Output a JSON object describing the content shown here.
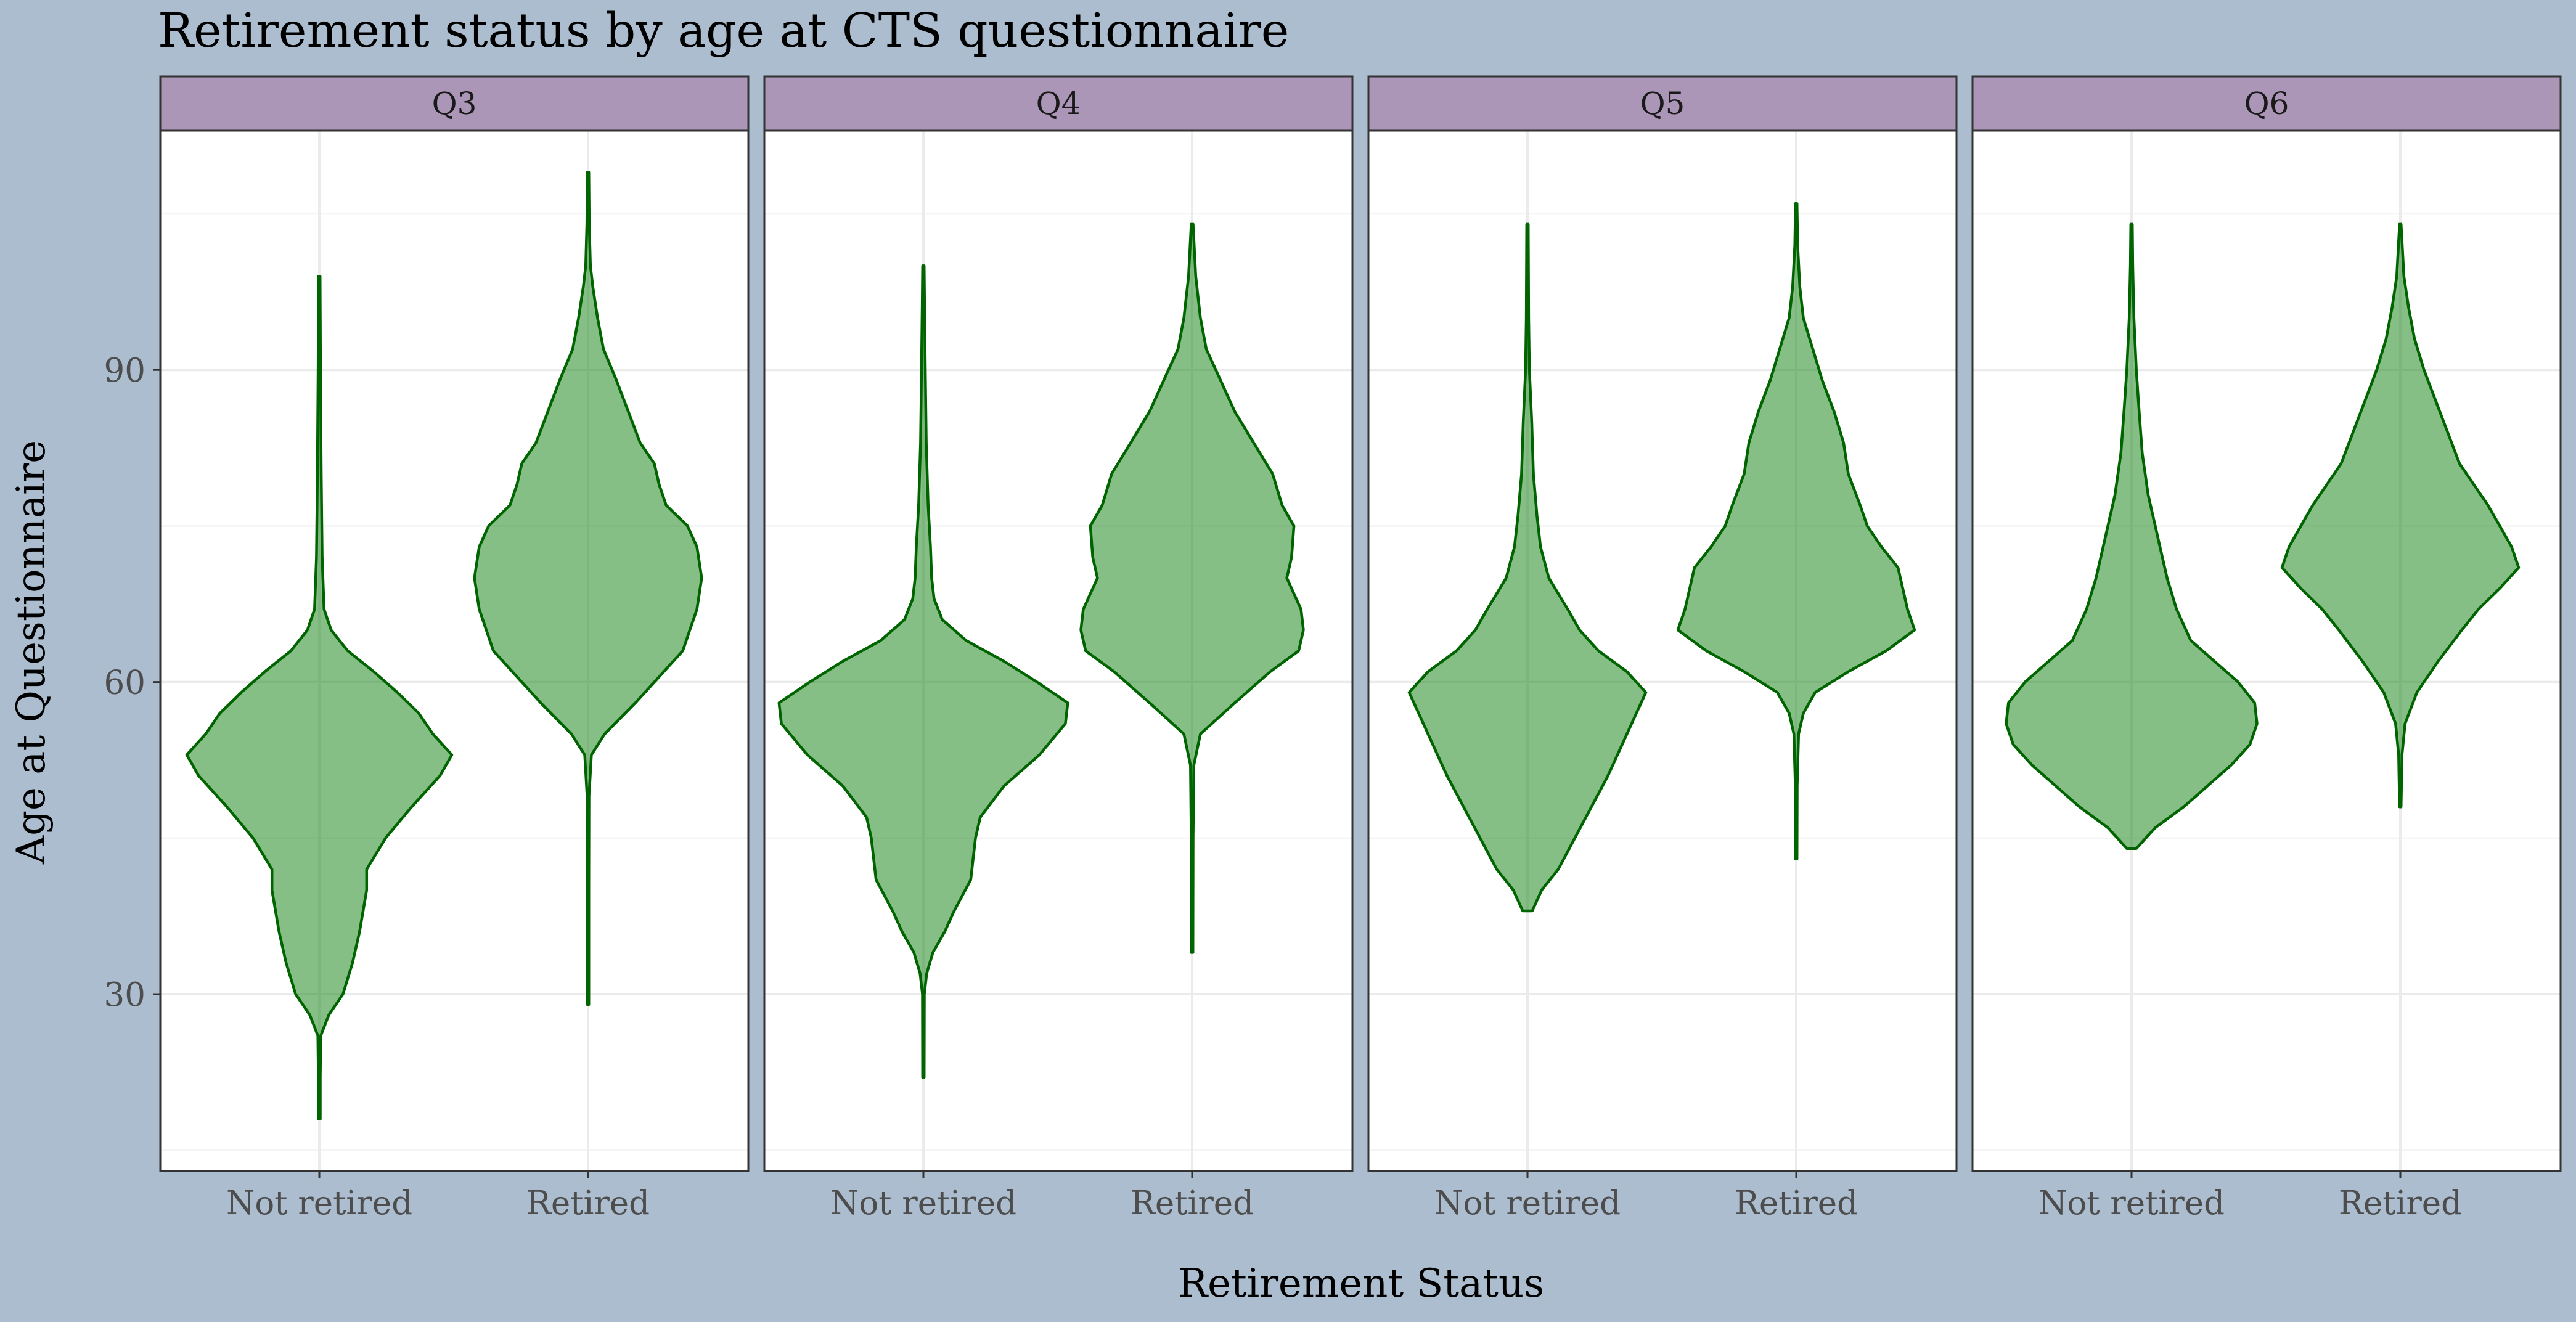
{
  "chart_data": {
    "type": "violin",
    "title": "Retirement status by age at CTS questionnaire",
    "xlabel": "Retirement Status",
    "ylabel": "Age at Questionnaire",
    "ylim": [
      13,
      113
    ],
    "yticks": [
      30,
      60,
      90
    ],
    "categories": [
      "Not retired",
      "Retired"
    ],
    "grid": true,
    "legend": "none",
    "colors": {
      "fill": "#228b22",
      "outline": "#006400",
      "strip": "#ab96b7",
      "background": "#abbdce"
    },
    "facets": [
      {
        "label": "Q3",
        "groups": [
          {
            "category": "Not retired",
            "min": 18,
            "max": 99,
            "profile": [
              [
                18,
                0.004
              ],
              [
                22,
                0.004
              ],
              [
                26,
                0.006
              ],
              [
                28,
                0.04
              ],
              [
                30,
                0.1
              ],
              [
                33,
                0.14
              ],
              [
                36,
                0.17
              ],
              [
                40,
                0.2
              ],
              [
                42,
                0.2
              ],
              [
                45,
                0.28
              ],
              [
                48,
                0.39
              ],
              [
                51,
                0.51
              ],
              [
                53,
                0.56
              ],
              [
                55,
                0.48
              ],
              [
                57,
                0.42
              ],
              [
                59,
                0.33
              ],
              [
                61,
                0.23
              ],
              [
                63,
                0.12
              ],
              [
                65,
                0.05
              ],
              [
                67,
                0.02
              ],
              [
                72,
                0.012
              ],
              [
                80,
                0.008
              ],
              [
                90,
                0.005
              ],
              [
                99,
                0.003
              ]
            ]
          },
          {
            "category": "Retired",
            "min": 29,
            "max": 109,
            "profile": [
              [
                29,
                0.003
              ],
              [
                40,
                0.003
              ],
              [
                49,
                0.004
              ],
              [
                53,
                0.014
              ],
              [
                55,
                0.07
              ],
              [
                58,
                0.2
              ],
              [
                61,
                0.32
              ],
              [
                63,
                0.4
              ],
              [
                65,
                0.43
              ],
              [
                67,
                0.46
              ],
              [
                70,
                0.48
              ],
              [
                73,
                0.46
              ],
              [
                75,
                0.42
              ],
              [
                77,
                0.33
              ],
              [
                79,
                0.3
              ],
              [
                81,
                0.28
              ],
              [
                83,
                0.22
              ],
              [
                86,
                0.17
              ],
              [
                89,
                0.12
              ],
              [
                92,
                0.065
              ],
              [
                95,
                0.04
              ],
              [
                98,
                0.02
              ],
              [
                100,
                0.01
              ],
              [
                104,
                0.005
              ],
              [
                109,
                0.003
              ]
            ]
          }
        ]
      },
      {
        "label": "Q4",
        "groups": [
          {
            "category": "Not retired",
            "min": 22,
            "max": 100,
            "profile": [
              [
                22,
                0.003
              ],
              [
                30,
                0.004
              ],
              [
                32,
                0.014
              ],
              [
                34,
                0.04
              ],
              [
                36,
                0.09
              ],
              [
                38,
                0.13
              ],
              [
                41,
                0.2
              ],
              [
                45,
                0.22
              ],
              [
                47,
                0.24
              ],
              [
                50,
                0.34
              ],
              [
                53,
                0.49
              ],
              [
                56,
                0.6
              ],
              [
                58,
                0.61
              ],
              [
                60,
                0.48
              ],
              [
                62,
                0.34
              ],
              [
                64,
                0.18
              ],
              [
                66,
                0.08
              ],
              [
                68,
                0.045
              ],
              [
                70,
                0.035
              ],
              [
                73,
                0.03
              ],
              [
                77,
                0.02
              ],
              [
                83,
                0.012
              ],
              [
                90,
                0.008
              ],
              [
                96,
                0.005
              ],
              [
                100,
                0.003
              ]
            ]
          },
          {
            "category": "Retired",
            "min": 34,
            "max": 104,
            "profile": [
              [
                34,
                0.003
              ],
              [
                45,
                0.004
              ],
              [
                52,
                0.007
              ],
              [
                55,
                0.035
              ],
              [
                58,
                0.18
              ],
              [
                61,
                0.33
              ],
              [
                63,
                0.45
              ],
              [
                65,
                0.47
              ],
              [
                67,
                0.46
              ],
              [
                70,
                0.4
              ],
              [
                72,
                0.42
              ],
              [
                75,
                0.43
              ],
              [
                77,
                0.38
              ],
              [
                80,
                0.34
              ],
              [
                83,
                0.26
              ],
              [
                86,
                0.18
              ],
              [
                89,
                0.12
              ],
              [
                92,
                0.06
              ],
              [
                95,
                0.035
              ],
              [
                99,
                0.015
              ],
              [
                104,
                0.004
              ]
            ]
          }
        ]
      },
      {
        "label": "Q5",
        "groups": [
          {
            "category": "Not retired",
            "min": 38,
            "max": 104,
            "profile": [
              [
                38,
                0.02
              ],
              [
                40,
                0.06
              ],
              [
                42,
                0.13
              ],
              [
                45,
                0.2
              ],
              [
                48,
                0.27
              ],
              [
                51,
                0.34
              ],
              [
                54,
                0.4
              ],
              [
                57,
                0.46
              ],
              [
                59,
                0.5
              ],
              [
                61,
                0.42
              ],
              [
                63,
                0.3
              ],
              [
                65,
                0.22
              ],
              [
                67,
                0.17
              ],
              [
                70,
                0.09
              ],
              [
                73,
                0.055
              ],
              [
                76,
                0.04
              ],
              [
                80,
                0.025
              ],
              [
                85,
                0.018
              ],
              [
                90,
                0.008
              ],
              [
                95,
                0.005
              ],
              [
                100,
                0.004
              ],
              [
                104,
                0.003
              ]
            ]
          },
          {
            "category": "Retired",
            "min": 43,
            "max": 106,
            "profile": [
              [
                43,
                0.003
              ],
              [
                50,
                0.004
              ],
              [
                55,
                0.01
              ],
              [
                57,
                0.03
              ],
              [
                59,
                0.08
              ],
              [
                61,
                0.22
              ],
              [
                63,
                0.38
              ],
              [
                65,
                0.5
              ],
              [
                67,
                0.47
              ],
              [
                69,
                0.45
              ],
              [
                71,
                0.43
              ],
              [
                73,
                0.36
              ],
              [
                75,
                0.3
              ],
              [
                77,
                0.27
              ],
              [
                80,
                0.22
              ],
              [
                83,
                0.2
              ],
              [
                86,
                0.16
              ],
              [
                89,
                0.11
              ],
              [
                92,
                0.07
              ],
              [
                95,
                0.03
              ],
              [
                98,
                0.015
              ],
              [
                102,
                0.006
              ],
              [
                106,
                0.003
              ]
            ]
          }
        ]
      },
      {
        "label": "Q6",
        "groups": [
          {
            "category": "Not retired",
            "min": 44,
            "max": 104,
            "profile": [
              [
                44,
                0.02
              ],
              [
                46,
                0.1
              ],
              [
                48,
                0.22
              ],
              [
                50,
                0.32
              ],
              [
                52,
                0.42
              ],
              [
                54,
                0.5
              ],
              [
                56,
                0.53
              ],
              [
                58,
                0.52
              ],
              [
                60,
                0.45
              ],
              [
                62,
                0.35
              ],
              [
                64,
                0.25
              ],
              [
                67,
                0.19
              ],
              [
                70,
                0.15
              ],
              [
                74,
                0.11
              ],
              [
                78,
                0.07
              ],
              [
                82,
                0.045
              ],
              [
                86,
                0.032
              ],
              [
                90,
                0.02
              ],
              [
                95,
                0.01
              ],
              [
                100,
                0.005
              ],
              [
                104,
                0.003
              ]
            ]
          },
          {
            "category": "Retired",
            "min": 48,
            "max": 104,
            "profile": [
              [
                48,
                0.003
              ],
              [
                53,
                0.007
              ],
              [
                56,
                0.02
              ],
              [
                59,
                0.07
              ],
              [
                62,
                0.16
              ],
              [
                65,
                0.26
              ],
              [
                67,
                0.33
              ],
              [
                69,
                0.42
              ],
              [
                71,
                0.5
              ],
              [
                73,
                0.47
              ],
              [
                75,
                0.42
              ],
              [
                77,
                0.37
              ],
              [
                79,
                0.31
              ],
              [
                81,
                0.25
              ],
              [
                84,
                0.2
              ],
              [
                87,
                0.15
              ],
              [
                90,
                0.1
              ],
              [
                93,
                0.06
              ],
              [
                96,
                0.035
              ],
              [
                99,
                0.015
              ],
              [
                104,
                0.003
              ]
            ]
          }
        ]
      }
    ]
  }
}
